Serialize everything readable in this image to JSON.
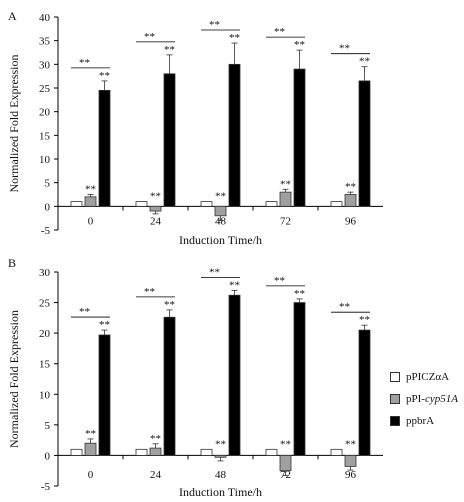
{
  "chart_data": [
    {
      "type": "bar",
      "panel_label": "A",
      "categories": [
        "0",
        "24",
        "48",
        "72",
        "96"
      ],
      "xlabel": "Induction Time/h",
      "ylabel": "Normalized Fold Expression",
      "ylim": [
        -5,
        40
      ],
      "yticks": [
        -5,
        0,
        5,
        10,
        15,
        20,
        25,
        30,
        35,
        40
      ],
      "series": [
        {
          "name": "pPICZαA",
          "values": [
            1,
            1,
            1,
            1,
            1
          ],
          "errors": [
            0,
            0,
            0,
            0,
            0
          ],
          "color": "#ffffff"
        },
        {
          "name": "pPI-cyp51A",
          "values": [
            2,
            -1,
            -2,
            3,
            2.5
          ],
          "errors": [
            0.5,
            0.6,
            1.0,
            0.6,
            0.5
          ],
          "color": "#a0a0a0"
        },
        {
          "name": "ppbrA",
          "values": [
            24.5,
            28,
            30,
            29,
            26.5
          ],
          "errors": [
            2.0,
            4.0,
            4.5,
            4.0,
            3.0
          ],
          "color": "#000000"
        }
      ],
      "annotations": {
        "significance": "**"
      }
    },
    {
      "type": "bar",
      "panel_label": "B",
      "categories": [
        "0",
        "24",
        "48",
        "72",
        "96"
      ],
      "xlabel": "Induction Time/h",
      "ylabel": "Normalized Fold Expression",
      "ylim": [
        -5,
        30
      ],
      "yticks": [
        -5,
        0,
        5,
        10,
        15,
        20,
        25,
        30
      ],
      "series": [
        {
          "name": "pPICZαA",
          "values": [
            1,
            1,
            1,
            1,
            1
          ],
          "errors": [
            0,
            0,
            0,
            0,
            0
          ],
          "color": "#ffffff"
        },
        {
          "name": "pPI-cyp51A",
          "values": [
            2,
            1.2,
            -0.3,
            -2.5,
            -1.8
          ],
          "errors": [
            0.7,
            0.7,
            0.6,
            0.8,
            0.6
          ],
          "color": "#a0a0a0"
        },
        {
          "name": "ppbrA",
          "values": [
            19.7,
            22.6,
            26.2,
            25,
            20.5
          ],
          "errors": [
            0.8,
            1.2,
            0.8,
            0.6,
            0.8
          ],
          "color": "#000000"
        }
      ],
      "annotations": {
        "significance": "**"
      }
    }
  ],
  "legend": {
    "items": [
      {
        "name": "pPICZαA",
        "prefix": "pPICZαA",
        "italic": "",
        "suffix": "",
        "color": "#ffffff"
      },
      {
        "name": "pPI-cyp51A",
        "prefix": "pPI-",
        "italic": "cyp51A",
        "suffix": "",
        "color": "#a0a0a0"
      },
      {
        "name": "ppbrA",
        "prefix": "ppbrA",
        "italic": "",
        "suffix": "",
        "color": "#000000"
      }
    ]
  }
}
